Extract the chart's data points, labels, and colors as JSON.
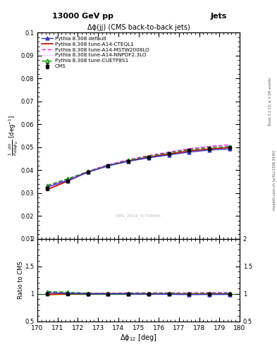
{
  "title_top": "13000 GeV pp",
  "title_right": "Jets",
  "plot_title": "Δϕ(jj) (CMS back-to-back jets)",
  "xlabel": "Δϕ$_{12}$ [deg]",
  "ylabel": "$\\frac{1}{\\sigma}\\frac{d\\sigma}{d\\Delta\\phi_{12}}$ [deg$^{-1}$]",
  "ylabel_ratio": "Ratio to CMS",
  "watermark": "CMS_2019_I1719955",
  "right_label": "mcplots.cern.ch [arXiv:1306.3436]",
  "rivet_label": "Rivet 3.1.10; ≥ 3.1M events",
  "x": [
    170.5,
    171.5,
    172.5,
    173.5,
    174.5,
    175.5,
    176.5,
    177.5,
    178.5,
    179.5
  ],
  "cms_y": [
    0.032,
    0.0352,
    0.039,
    0.0418,
    0.0438,
    0.0455,
    0.047,
    0.0485,
    0.0493,
    0.0498
  ],
  "cms_yerr": [
    0.0008,
    0.0006,
    0.0006,
    0.0005,
    0.0005,
    0.0005,
    0.0005,
    0.0004,
    0.0004,
    0.0004
  ],
  "pythia_default_y": [
    0.0325,
    0.0355,
    0.039,
    0.0418,
    0.0438,
    0.0453,
    0.0466,
    0.0478,
    0.0487,
    0.0492
  ],
  "pythia_cteql1_y": [
    0.0315,
    0.0352,
    0.0392,
    0.042,
    0.044,
    0.0456,
    0.047,
    0.0483,
    0.0492,
    0.0498
  ],
  "pythia_mstw_y": [
    0.033,
    0.0358,
    0.0395,
    0.0423,
    0.0445,
    0.0463,
    0.0478,
    0.0493,
    0.0503,
    0.051
  ],
  "pythia_nnpdf_y": [
    0.0332,
    0.036,
    0.0395,
    0.0421,
    0.0443,
    0.0461,
    0.0476,
    0.0491,
    0.0502,
    0.0508
  ],
  "pythia_cuetp_y": [
    0.0333,
    0.0362,
    0.0393,
    0.042,
    0.0442,
    0.046,
    0.0475,
    0.0488,
    0.0498,
    0.0502
  ],
  "color_cms": "#000000",
  "color_default": "#3333cc",
  "color_cteql1": "#cc0000",
  "color_mstw": "#ff00ff",
  "color_nnpdf": "#ff88ff",
  "color_cuetp": "#009900",
  "ylim_main": [
    0.01,
    0.1
  ],
  "ylim_ratio": [
    0.5,
    2.0
  ],
  "xlim": [
    170.0,
    180.0
  ],
  "ratio_band_color": "#ddff00",
  "ratio_band_alpha": 0.6
}
